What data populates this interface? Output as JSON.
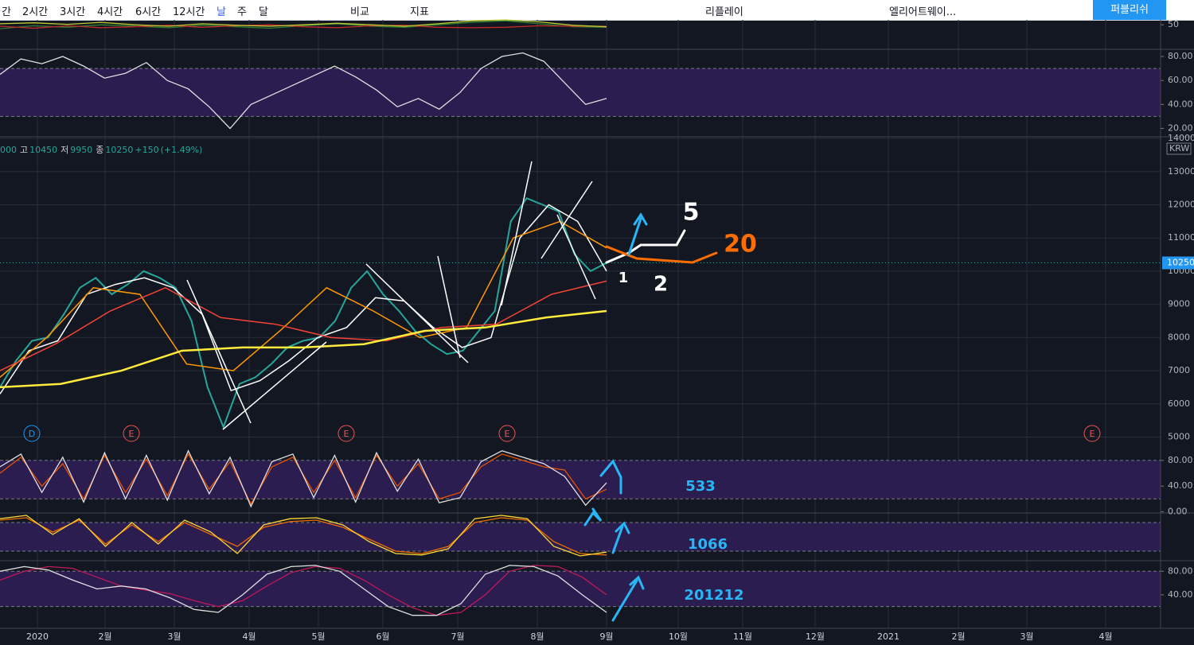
{
  "toolbar": {
    "intervals": [
      "간",
      "2시간",
      "3시간",
      "4시간",
      "6시간",
      "12시간",
      "날",
      "주",
      "달"
    ],
    "compare": "비교",
    "indicators": "지표",
    "replay": "리플레이",
    "layout": "엘리어트웨이...",
    "publish": "퍼블리쉬"
  },
  "header": {
    "prefix": "000",
    "high_label": "고",
    "high": "10450",
    "low_label": "저",
    "low": "9950",
    "close_label": "종",
    "close": "10250",
    "change": "+150",
    "change_pct": "(+1.49%)"
  },
  "currency": "KRW",
  "last_price": {
    "value": 10250,
    "label": "10250"
  },
  "x_labels": [
    "2020",
    "2월",
    "3월",
    "4월",
    "5월",
    "6월",
    "7월",
    "8월",
    "9월",
    "10월",
    "11월",
    "12월",
    "2021",
    "2월",
    "3월",
    "4월"
  ],
  "events": [
    "D",
    "E",
    "E",
    "E",
    "E"
  ],
  "panes": [
    {
      "name": "dmi",
      "ylim": [
        0,
        60
      ],
      "yticks": [
        50
      ],
      "series": [
        {
          "color": "#2e7d32",
          "values": [
            42,
            48,
            45,
            50,
            47,
            44,
            49,
            46,
            43,
            48,
            52,
            47,
            45,
            50,
            55,
            58,
            52,
            46,
            45
          ]
        },
        {
          "color": "#c62828",
          "values": [
            47,
            43,
            48,
            44,
            46,
            49,
            45,
            48,
            50,
            46,
            44,
            48,
            49,
            45,
            44,
            45,
            48,
            47,
            47
          ]
        },
        {
          "color": "#c0ca33",
          "values": [
            52,
            54,
            51,
            55,
            50,
            47,
            52,
            49,
            47,
            50,
            53,
            50,
            47,
            52,
            58,
            60,
            56,
            49,
            46
          ]
        }
      ]
    },
    {
      "name": "rsi",
      "ylim": [
        13,
        86
      ],
      "yticks": [
        {
          "value": 80,
          "label": "80.00"
        },
        {
          "value": 60,
          "label": "60.00"
        },
        {
          "value": 40,
          "label": "40.00"
        },
        {
          "value": 20,
          "label": "20.00"
        }
      ],
      "band": [
        30,
        70
      ],
      "series": [
        {
          "color": "#e0e0e0",
          "values": [
            65,
            78,
            74,
            80,
            72,
            62,
            66,
            75,
            60,
            53,
            38,
            20,
            40,
            48,
            56,
            64,
            72,
            63,
            52,
            38,
            45,
            36,
            50,
            70,
            80,
            83,
            76,
            58,
            40,
            45
          ]
        }
      ]
    },
    {
      "name": "stoch-533",
      "ylim": [
        -2,
        101
      ],
      "yticks": [
        {
          "value": 80,
          "label": "80.00"
        },
        {
          "value": 40,
          "label": "40.00"
        },
        {
          "value": 0,
          "label": "0.00"
        }
      ],
      "band": [
        20,
        80
      ],
      "series": [
        {
          "color": "#e65100",
          "values": [
            60,
            85,
            40,
            75,
            20,
            88,
            30,
            82,
            25,
            90,
            35,
            78,
            12,
            70,
            85,
            30,
            80,
            22,
            88,
            40,
            75,
            20,
            30,
            70,
            90,
            80,
            70,
            65,
            20,
            35
          ]
        },
        {
          "color": "#e0e0e0",
          "values": [
            70,
            90,
            30,
            85,
            15,
            92,
            20,
            88,
            18,
            95,
            28,
            85,
            8,
            78,
            90,
            22,
            88,
            15,
            92,
            32,
            82,
            14,
            22,
            78,
            95,
            85,
            75,
            55,
            10,
            45
          ]
        }
      ]
    },
    {
      "name": "stoch-1066",
      "ylim": [
        0,
        100
      ],
      "yticks": [],
      "band": [
        20,
        80
      ],
      "series": [
        {
          "color": "#ef6c00",
          "values": [
            85,
            90,
            60,
            85,
            35,
            75,
            40,
            80,
            55,
            30,
            70,
            82,
            85,
            70,
            45,
            20,
            15,
            30,
            80,
            90,
            85,
            40,
            15,
            12
          ]
        },
        {
          "color": "#fdd835",
          "values": [
            88,
            95,
            55,
            88,
            30,
            80,
            35,
            85,
            60,
            15,
            75,
            88,
            90,
            75,
            40,
            15,
            12,
            25,
            88,
            95,
            88,
            30,
            10,
            18
          ]
        }
      ]
    },
    {
      "name": "stoch-201212",
      "ylim": [
        -17,
        98
      ],
      "yticks": [
        {
          "value": 80,
          "label": "80.00"
        },
        {
          "value": 40,
          "label": "40.00"
        }
      ],
      "band": [
        20,
        80
      ],
      "series": [
        {
          "color": "#c2185b",
          "values": [
            65,
            80,
            88,
            85,
            70,
            55,
            48,
            42,
            30,
            20,
            30,
            55,
            78,
            88,
            85,
            65,
            40,
            18,
            5,
            10,
            40,
            80,
            90,
            88,
            70,
            40
          ]
        },
        {
          "color": "#e0e0e0",
          "values": [
            80,
            88,
            82,
            65,
            50,
            55,
            50,
            35,
            15,
            10,
            40,
            75,
            88,
            90,
            80,
            50,
            20,
            5,
            5,
            25,
            75,
            90,
            88,
            72,
            40,
            10
          ]
        }
      ]
    }
  ],
  "price": {
    "ylim": [
      4700,
      14050
    ],
    "yticks": [
      14000,
      13000,
      12000,
      11000,
      10000,
      9000,
      8000,
      7000,
      6000,
      5000
    ],
    "series": [
      {
        "name": "close",
        "color": "#26a69a",
        "width": 2,
        "values": [
          6500,
          7300,
          7900,
          8000,
          8700,
          9500,
          9800,
          9300,
          9600,
          10000,
          9800,
          9500,
          8500,
          6500,
          5300,
          6600,
          6800,
          7200,
          7700,
          7900,
          8000,
          8500,
          9500,
          10000,
          9300,
          8800,
          8200,
          7800,
          7500,
          7600,
          8200,
          8800,
          11500,
          12200,
          12000,
          11800,
          10500,
          10000,
          10250
        ]
      },
      {
        "name": "ma5",
        "color": "#ffffff",
        "width": 1.5,
        "values": [
          6300,
          7600,
          7900,
          9300,
          9600,
          9800,
          9500,
          8700,
          6400,
          6700,
          7300,
          8000,
          8300,
          9200,
          9100,
          8300,
          7700,
          8000,
          11000,
          12000,
          11500,
          10000
        ]
      },
      {
        "name": "ma20",
        "color": "#ff9800",
        "width": 1.5,
        "values": [
          6800,
          8000,
          9500,
          9300,
          7200,
          7000,
          8200,
          9500,
          8800,
          8000,
          8300,
          11000,
          11500,
          10700
        ]
      },
      {
        "name": "ma60",
        "color": "#f44336",
        "width": 1.5,
        "values": [
          7000,
          7800,
          8800,
          9500,
          8600,
          8400,
          8000,
          7900,
          8300,
          8400,
          9300,
          9700
        ]
      },
      {
        "name": "ma120",
        "color": "#ffeb3b",
        "width": 2.5,
        "values": [
          6500,
          6600,
          7000,
          7600,
          7700,
          7700,
          7800,
          8200,
          8300,
          8600,
          8800
        ]
      }
    ]
  },
  "annotations": [
    {
      "text": "5",
      "color": "#ffffff"
    },
    {
      "text": "20",
      "color": "#ff6d00"
    },
    {
      "text": "1",
      "color": "#ffffff"
    },
    {
      "text": "2",
      "color": "#ffffff"
    },
    {
      "text": "533",
      "color": "#29b6f6"
    },
    {
      "text": "1066",
      "color": "#29b6f6"
    },
    {
      "text": "201212",
      "color": "#29b6f6"
    }
  ]
}
